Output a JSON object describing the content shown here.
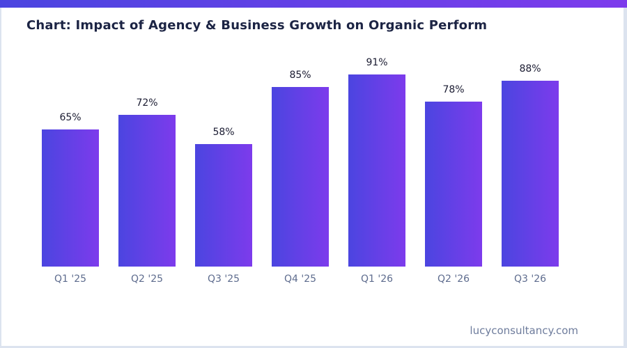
{
  "page": {
    "title": "Chart: Impact of Agency & Business Growth on Organic Perform",
    "footer": "lucyconsultancy.com"
  },
  "colors": {
    "accent_gradient_start": "#4b45e0",
    "accent_gradient_end": "#7d3bec",
    "title_text": "#1c2444",
    "value_label_text": "#1a1b31",
    "axis_label_text": "#5e6c8e",
    "footer_text": "#6e7c9c",
    "page_border": "#dce3ef",
    "background": "#ffffff"
  },
  "chart_data": {
    "type": "bar",
    "title": "Chart: Impact of Agency & Business Growth on Organic Perform",
    "categories": [
      "Q1 '25",
      "Q2 '25",
      "Q3 '25",
      "Q4 '25",
      "Q1 '26",
      "Q2 '26",
      "Q3 '26"
    ],
    "values": [
      65,
      72,
      58,
      85,
      91,
      78,
      88
    ],
    "value_labels": [
      "65%",
      "72%",
      "58%",
      "85%",
      "91%",
      "78%",
      "88%"
    ],
    "xlabel": "",
    "ylabel": "",
    "ylim": [
      0,
      100
    ],
    "grid": false,
    "legend": false,
    "bar_gradient": [
      "#4b45e0",
      "#7d3bec"
    ],
    "bar_orientation": "vertical"
  }
}
